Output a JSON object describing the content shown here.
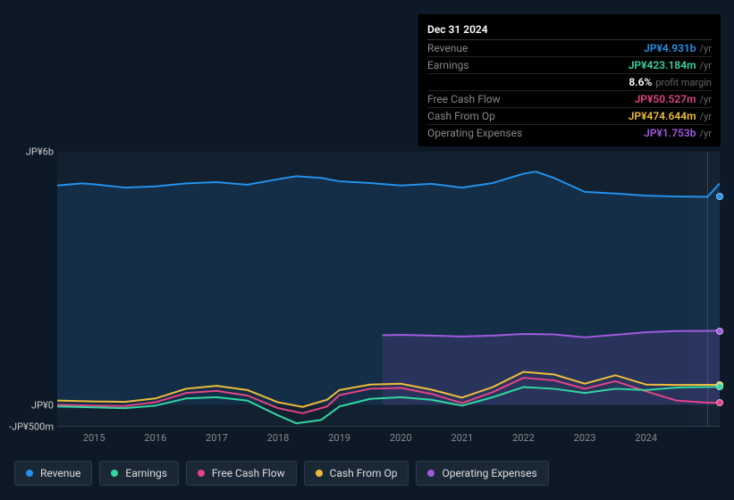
{
  "tooltip": {
    "date": "Dec 31 2024",
    "rows": [
      {
        "label": "Revenue",
        "value": "JP¥4.931b",
        "suffix": "/yr",
        "color": "#2391eb"
      },
      {
        "label": "Earnings",
        "value": "JP¥423.184m",
        "suffix": "/yr",
        "color": "#33d69f"
      },
      {
        "label": "",
        "value": "8.6%",
        "suffix": "profit margin",
        "color": "#ffffff"
      },
      {
        "label": "Free Cash Flow",
        "value": "JP¥50.527m",
        "suffix": "/yr",
        "color": "#e24485"
      },
      {
        "label": "Cash From Op",
        "value": "JP¥474.644m",
        "suffix": "/yr",
        "color": "#eebc3b"
      },
      {
        "label": "Operating Expenses",
        "value": "JP¥1.753b",
        "suffix": "/yr",
        "color": "#a05ae0"
      }
    ]
  },
  "chart": {
    "type": "area-line",
    "background_color": "#0d1926",
    "grid_color": "#2a3b4d",
    "ylabels": [
      {
        "text": "JP¥6b",
        "value": 6000
      },
      {
        "text": "JP¥0",
        "value": 0
      },
      {
        "text": "-JP¥500m",
        "value": -500
      }
    ],
    "y_domain": [
      -500,
      6000
    ],
    "x_years": [
      "2015",
      "2016",
      "2017",
      "2018",
      "2019",
      "2020",
      "2021",
      "2022",
      "2023",
      "2024"
    ],
    "x_domain": [
      2014.4,
      2025.2
    ],
    "guide_x": 2024.99,
    "series": [
      {
        "name": "Revenue",
        "color": "#2391eb",
        "fill_opacity": 0.12,
        "line_width": 2,
        "data": [
          [
            2014.4,
            5200
          ],
          [
            2014.8,
            5250
          ],
          [
            2015.0,
            5230
          ],
          [
            2015.5,
            5150
          ],
          [
            2016.0,
            5180
          ],
          [
            2016.5,
            5250
          ],
          [
            2017.0,
            5280
          ],
          [
            2017.5,
            5220
          ],
          [
            2018.0,
            5350
          ],
          [
            2018.3,
            5420
          ],
          [
            2018.7,
            5380
          ],
          [
            2019.0,
            5300
          ],
          [
            2019.5,
            5260
          ],
          [
            2020.0,
            5200
          ],
          [
            2020.5,
            5240
          ],
          [
            2021.0,
            5150
          ],
          [
            2021.5,
            5260
          ],
          [
            2022.0,
            5480
          ],
          [
            2022.2,
            5530
          ],
          [
            2022.5,
            5380
          ],
          [
            2023.0,
            5050
          ],
          [
            2023.5,
            5010
          ],
          [
            2024.0,
            4960
          ],
          [
            2024.5,
            4940
          ],
          [
            2025.0,
            4931
          ],
          [
            2025.2,
            5250
          ]
        ]
      },
      {
        "name": "Operating Expenses",
        "color": "#a05ae0",
        "fill_opacity": 0.15,
        "line_width": 2,
        "start_x": 2019.7,
        "data": [
          [
            2019.7,
            1650
          ],
          [
            2020.0,
            1660
          ],
          [
            2020.5,
            1640
          ],
          [
            2021.0,
            1620
          ],
          [
            2021.5,
            1640
          ],
          [
            2022.0,
            1680
          ],
          [
            2022.5,
            1670
          ],
          [
            2023.0,
            1600
          ],
          [
            2023.5,
            1660
          ],
          [
            2024.0,
            1720
          ],
          [
            2024.5,
            1750
          ],
          [
            2025.0,
            1753
          ],
          [
            2025.2,
            1760
          ]
        ]
      },
      {
        "name": "Cash From Op",
        "color": "#eebc3b",
        "fill_opacity": 0.0,
        "line_width": 2,
        "data": [
          [
            2014.4,
            100
          ],
          [
            2015.0,
            80
          ],
          [
            2015.5,
            70
          ],
          [
            2016.0,
            150
          ],
          [
            2016.5,
            380
          ],
          [
            2017.0,
            450
          ],
          [
            2017.5,
            350
          ],
          [
            2018.0,
            60
          ],
          [
            2018.4,
            -50
          ],
          [
            2018.8,
            120
          ],
          [
            2019.0,
            350
          ],
          [
            2019.5,
            480
          ],
          [
            2020.0,
            500
          ],
          [
            2020.5,
            360
          ],
          [
            2021.0,
            170
          ],
          [
            2021.5,
            420
          ],
          [
            2022.0,
            780
          ],
          [
            2022.5,
            720
          ],
          [
            2023.0,
            500
          ],
          [
            2023.5,
            700
          ],
          [
            2024.0,
            480
          ],
          [
            2024.5,
            470
          ],
          [
            2025.0,
            475
          ],
          [
            2025.2,
            475
          ]
        ]
      },
      {
        "name": "Free Cash Flow",
        "color": "#e24485",
        "fill_opacity": 0.0,
        "line_width": 2,
        "data": [
          [
            2014.4,
            0
          ],
          [
            2015.0,
            -20
          ],
          [
            2015.5,
            -30
          ],
          [
            2016.0,
            60
          ],
          [
            2016.5,
            280
          ],
          [
            2017.0,
            330
          ],
          [
            2017.5,
            220
          ],
          [
            2018.0,
            -80
          ],
          [
            2018.4,
            -200
          ],
          [
            2018.8,
            -40
          ],
          [
            2019.0,
            230
          ],
          [
            2019.5,
            380
          ],
          [
            2020.0,
            400
          ],
          [
            2020.5,
            260
          ],
          [
            2021.0,
            40
          ],
          [
            2021.5,
            300
          ],
          [
            2022.0,
            640
          ],
          [
            2022.5,
            580
          ],
          [
            2023.0,
            380
          ],
          [
            2023.5,
            560
          ],
          [
            2024.0,
            320
          ],
          [
            2024.5,
            100
          ],
          [
            2025.0,
            51
          ],
          [
            2025.2,
            51
          ]
        ]
      },
      {
        "name": "Earnings",
        "color": "#33d69f",
        "fill_opacity": 0.0,
        "line_width": 2,
        "data": [
          [
            2014.4,
            -40
          ],
          [
            2015.0,
            -60
          ],
          [
            2015.5,
            -80
          ],
          [
            2016.0,
            -20
          ],
          [
            2016.5,
            150
          ],
          [
            2017.0,
            180
          ],
          [
            2017.5,
            100
          ],
          [
            2018.0,
            -250
          ],
          [
            2018.3,
            -440
          ],
          [
            2018.7,
            -360
          ],
          [
            2019.0,
            -40
          ],
          [
            2019.5,
            140
          ],
          [
            2020.0,
            180
          ],
          [
            2020.5,
            120
          ],
          [
            2021.0,
            -20
          ],
          [
            2021.5,
            180
          ],
          [
            2022.0,
            420
          ],
          [
            2022.5,
            380
          ],
          [
            2023.0,
            280
          ],
          [
            2023.5,
            380
          ],
          [
            2024.0,
            350
          ],
          [
            2024.5,
            410
          ],
          [
            2025.0,
            423
          ],
          [
            2025.2,
            423
          ]
        ]
      }
    ],
    "legend": [
      {
        "label": "Revenue",
        "color": "#2391eb"
      },
      {
        "label": "Earnings",
        "color": "#33d69f"
      },
      {
        "label": "Free Cash Flow",
        "color": "#e24485"
      },
      {
        "label": "Cash From Op",
        "color": "#eebc3b"
      },
      {
        "label": "Operating Expenses",
        "color": "#a05ae0"
      }
    ]
  }
}
